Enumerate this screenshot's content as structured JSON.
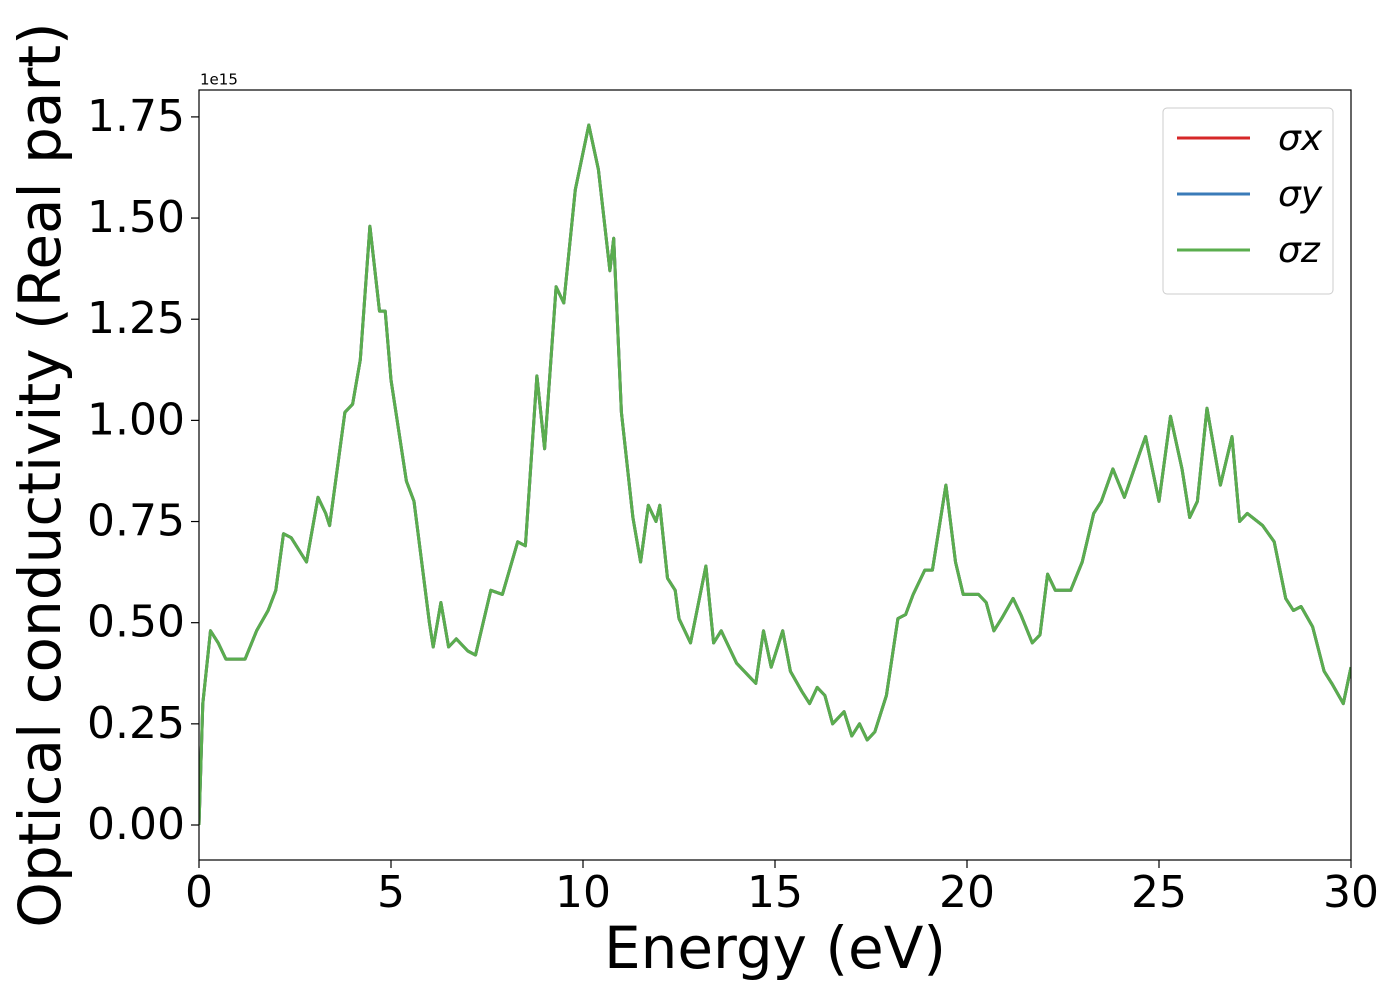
{
  "chart_data": {
    "type": "line",
    "xlabel": "Energy (eV)",
    "ylabel": "Optical conductivity (Real part)",
    "y_offset_text": "1e15",
    "x": [
      0,
      0.1,
      0.3,
      0.5,
      0.7,
      1.0,
      1.2,
      1.5,
      1.8,
      2.0,
      2.2,
      2.4,
      2.8,
      3.1,
      3.3,
      3.4,
      3.8,
      4.0,
      4.2,
      4.45,
      4.7,
      4.85,
      5.0,
      5.4,
      5.6,
      6.0,
      6.1,
      6.3,
      6.5,
      6.7,
      7.0,
      7.2,
      7.6,
      7.9,
      8.3,
      8.5,
      8.8,
      9.0,
      9.3,
      9.5,
      9.8,
      10.15,
      10.4,
      10.7,
      10.8,
      11.0,
      11.3,
      11.5,
      11.7,
      11.9,
      12.0,
      12.2,
      12.4,
      12.5,
      12.8,
      13.2,
      13.4,
      13.6,
      13.8,
      14.0,
      14.3,
      14.5,
      14.7,
      14.9,
      15.2,
      15.4,
      15.7,
      15.9,
      16.1,
      16.3,
      16.5,
      16.8,
      17.0,
      17.2,
      17.4,
      17.6,
      17.9,
      18.2,
      18.4,
      18.6,
      18.9,
      19.1,
      19.45,
      19.7,
      19.9,
      20.3,
      20.5,
      20.7,
      20.9,
      21.2,
      21.4,
      21.7,
      21.9,
      22.1,
      22.3,
      22.7,
      23.0,
      23.3,
      23.5,
      23.8,
      24.1,
      24.5,
      24.65,
      25.0,
      25.3,
      25.6,
      25.8,
      26.0,
      26.25,
      26.6,
      26.9,
      27.1,
      27.3,
      27.7,
      28.0,
      28.3,
      28.5,
      28.7,
      29.0,
      29.3,
      29.5,
      29.8,
      30.0
    ],
    "series": [
      {
        "name": "σx",
        "color": "#d62728",
        "values": [
          0.0,
          0.3,
          0.48,
          0.45,
          0.41,
          0.41,
          0.41,
          0.48,
          0.53,
          0.58,
          0.72,
          0.71,
          0.65,
          0.81,
          0.77,
          0.74,
          1.02,
          1.04,
          1.15,
          1.48,
          1.27,
          1.27,
          1.1,
          0.85,
          0.8,
          0.5,
          0.44,
          0.55,
          0.44,
          0.46,
          0.43,
          0.42,
          0.58,
          0.57,
          0.7,
          0.69,
          1.11,
          0.93,
          1.33,
          1.29,
          1.57,
          1.73,
          1.62,
          1.37,
          1.45,
          1.02,
          0.76,
          0.65,
          0.79,
          0.75,
          0.79,
          0.61,
          0.58,
          0.51,
          0.45,
          0.64,
          0.45,
          0.48,
          0.44,
          0.4,
          0.37,
          0.35,
          0.48,
          0.39,
          0.48,
          0.38,
          0.33,
          0.3,
          0.34,
          0.32,
          0.25,
          0.28,
          0.22,
          0.25,
          0.21,
          0.23,
          0.32,
          0.51,
          0.52,
          0.57,
          0.63,
          0.63,
          0.84,
          0.65,
          0.57,
          0.57,
          0.55,
          0.48,
          0.51,
          0.56,
          0.52,
          0.45,
          0.47,
          0.62,
          0.58,
          0.58,
          0.65,
          0.77,
          0.8,
          0.88,
          0.81,
          0.92,
          0.96,
          0.8,
          1.01,
          0.88,
          0.76,
          0.8,
          1.03,
          0.84,
          0.96,
          0.75,
          0.77,
          0.74,
          0.7,
          0.56,
          0.53,
          0.54,
          0.49,
          0.38,
          0.35,
          0.3,
          0.39
        ]
      },
      {
        "name": "σy",
        "color": "#3a7bb8",
        "values": [
          0.0,
          0.3,
          0.48,
          0.45,
          0.41,
          0.41,
          0.41,
          0.48,
          0.53,
          0.58,
          0.72,
          0.71,
          0.65,
          0.81,
          0.77,
          0.74,
          1.02,
          1.04,
          1.15,
          1.48,
          1.27,
          1.27,
          1.1,
          0.85,
          0.8,
          0.5,
          0.44,
          0.55,
          0.44,
          0.46,
          0.43,
          0.42,
          0.58,
          0.57,
          0.7,
          0.69,
          1.11,
          0.93,
          1.33,
          1.29,
          1.57,
          1.73,
          1.62,
          1.37,
          1.45,
          1.02,
          0.76,
          0.65,
          0.79,
          0.75,
          0.79,
          0.61,
          0.58,
          0.51,
          0.45,
          0.64,
          0.45,
          0.48,
          0.44,
          0.4,
          0.37,
          0.35,
          0.48,
          0.39,
          0.48,
          0.38,
          0.33,
          0.3,
          0.34,
          0.32,
          0.25,
          0.28,
          0.22,
          0.25,
          0.21,
          0.23,
          0.32,
          0.51,
          0.52,
          0.57,
          0.63,
          0.63,
          0.84,
          0.65,
          0.57,
          0.57,
          0.55,
          0.48,
          0.51,
          0.56,
          0.52,
          0.45,
          0.47,
          0.62,
          0.58,
          0.58,
          0.65,
          0.77,
          0.8,
          0.88,
          0.81,
          0.92,
          0.96,
          0.8,
          1.01,
          0.88,
          0.76,
          0.8,
          1.03,
          0.84,
          0.96,
          0.75,
          0.77,
          0.74,
          0.7,
          0.56,
          0.53,
          0.54,
          0.49,
          0.38,
          0.35,
          0.3,
          0.39
        ]
      },
      {
        "name": "σz",
        "color": "#5aad4e",
        "values": [
          0.0,
          0.3,
          0.48,
          0.45,
          0.41,
          0.41,
          0.41,
          0.48,
          0.53,
          0.58,
          0.72,
          0.71,
          0.65,
          0.81,
          0.77,
          0.74,
          1.02,
          1.04,
          1.15,
          1.48,
          1.27,
          1.27,
          1.1,
          0.85,
          0.8,
          0.5,
          0.44,
          0.55,
          0.44,
          0.46,
          0.43,
          0.42,
          0.58,
          0.57,
          0.7,
          0.69,
          1.11,
          0.93,
          1.33,
          1.29,
          1.57,
          1.73,
          1.62,
          1.37,
          1.45,
          1.02,
          0.76,
          0.65,
          0.79,
          0.75,
          0.79,
          0.61,
          0.58,
          0.51,
          0.45,
          0.64,
          0.45,
          0.48,
          0.44,
          0.4,
          0.37,
          0.35,
          0.48,
          0.39,
          0.48,
          0.38,
          0.33,
          0.3,
          0.34,
          0.32,
          0.25,
          0.28,
          0.22,
          0.25,
          0.21,
          0.23,
          0.32,
          0.51,
          0.52,
          0.57,
          0.63,
          0.63,
          0.84,
          0.65,
          0.57,
          0.57,
          0.55,
          0.48,
          0.51,
          0.56,
          0.52,
          0.45,
          0.47,
          0.62,
          0.58,
          0.58,
          0.65,
          0.77,
          0.8,
          0.88,
          0.81,
          0.92,
          0.96,
          0.8,
          1.01,
          0.88,
          0.76,
          0.8,
          1.03,
          0.84,
          0.96,
          0.75,
          0.77,
          0.74,
          0.7,
          0.56,
          0.53,
          0.54,
          0.49,
          0.38,
          0.35,
          0.3,
          0.39
        ]
      }
    ],
    "xlim": [
      0,
      30
    ],
    "xticks": [
      0,
      5,
      10,
      15,
      20,
      25,
      30
    ],
    "ylim": [
      -0.0865,
      1.8165
    ],
    "yticks": [
      {
        "value": 0,
        "label": "0.00"
      },
      {
        "value": 0.25,
        "label": "0.25"
      },
      {
        "value": 0.5,
        "label": "0.50"
      },
      {
        "value": 0.75,
        "label": "0.75"
      },
      {
        "value": 1,
        "label": "1.00"
      },
      {
        "value": 1.25,
        "label": "1.25"
      },
      {
        "value": 1.5,
        "label": "1.50"
      },
      {
        "value": 1.75,
        "label": "1.75"
      }
    ],
    "legend": "upper right",
    "grid": false
  }
}
